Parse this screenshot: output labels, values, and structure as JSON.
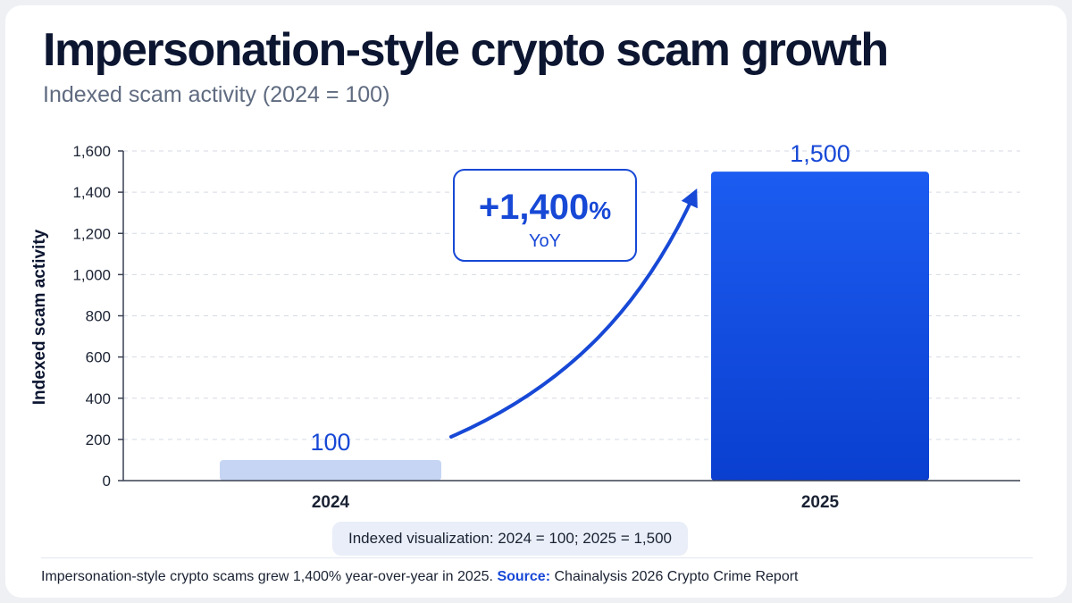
{
  "title": "Impersonation-style crypto scam growth",
  "subtitle": "Indexed scam activity (2024 = 100)",
  "annotation": {
    "value": "+1,400",
    "suffix": "%",
    "period": "YoY"
  },
  "note": "Indexed visualization: 2024 = 100; 2025 = 1,500",
  "footer": {
    "text": "Impersonation-style crypto scams grew 1,400% year-over-year in 2025.",
    "source_label": "Source:",
    "source_text": "Chainalysis 2026 Crypto Crime Report"
  },
  "colors": {
    "accent": "#1748d6",
    "bar_light": "#c6d5f3",
    "text_dark": "#0c1631"
  },
  "chart_data": {
    "type": "bar",
    "categories": [
      "2024",
      "2025"
    ],
    "values": [
      100,
      1500
    ],
    "value_labels": [
      "100",
      "1,500"
    ],
    "ylabel": "Indexed scam activity",
    "ylim": [
      0,
      1600
    ],
    "yticks": [
      0,
      200,
      400,
      600,
      800,
      1000,
      1200,
      1400,
      1600
    ],
    "ytick_labels": [
      "0",
      "200",
      "400",
      "600",
      "800",
      "1,000",
      "1,200",
      "1,400",
      "1,600"
    ],
    "grid": true
  }
}
